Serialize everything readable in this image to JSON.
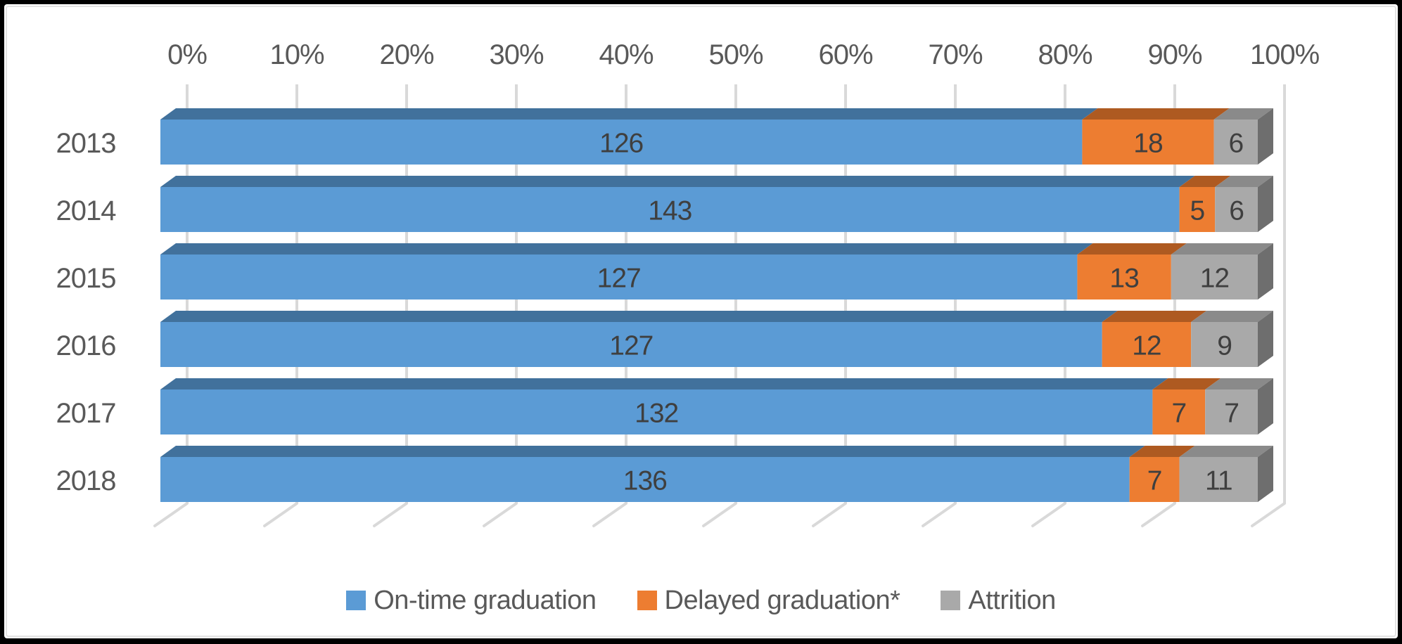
{
  "chart_data": {
    "type": "bar",
    "subtype": "horizontal-stacked-100pct-3d",
    "title": "",
    "categories": [
      "2013",
      "2014",
      "2015",
      "2016",
      "2017",
      "2018"
    ],
    "series": [
      {
        "name": "On-time graduation",
        "color": "#5B9BD5",
        "top_color": "#41719C",
        "side_color": "#366089",
        "values": [
          126,
          143,
          127,
          127,
          132,
          136
        ]
      },
      {
        "name": "Delayed graduation*",
        "color": "#ED7D31",
        "top_color": "#AE5A21",
        "side_color": "#9A4F1C",
        "values": [
          18,
          5,
          13,
          12,
          7,
          7
        ]
      },
      {
        "name": "Attrition",
        "color": "#A9A9A9",
        "top_color": "#8A8A8A",
        "side_color": "#6E6E6E",
        "values": [
          6,
          6,
          12,
          9,
          7,
          11
        ]
      }
    ],
    "x_axis": {
      "position": "top",
      "min": 0,
      "max": 100,
      "step": 10,
      "tick_labels": [
        "0%",
        "10%",
        "20%",
        "30%",
        "40%",
        "50%",
        "60%",
        "70%",
        "80%",
        "90%",
        "100%"
      ]
    },
    "value_labels_shown": true,
    "gridlines": true,
    "legend_position": "bottom"
  },
  "styles": {
    "background": "#FFFFFF",
    "frame_color": "#000000",
    "chart_border_color": "#E3E3E3",
    "grid_color": "#D9D9D9",
    "axis_text_color": "#595959",
    "value_label_color": "#3F3F3F"
  }
}
